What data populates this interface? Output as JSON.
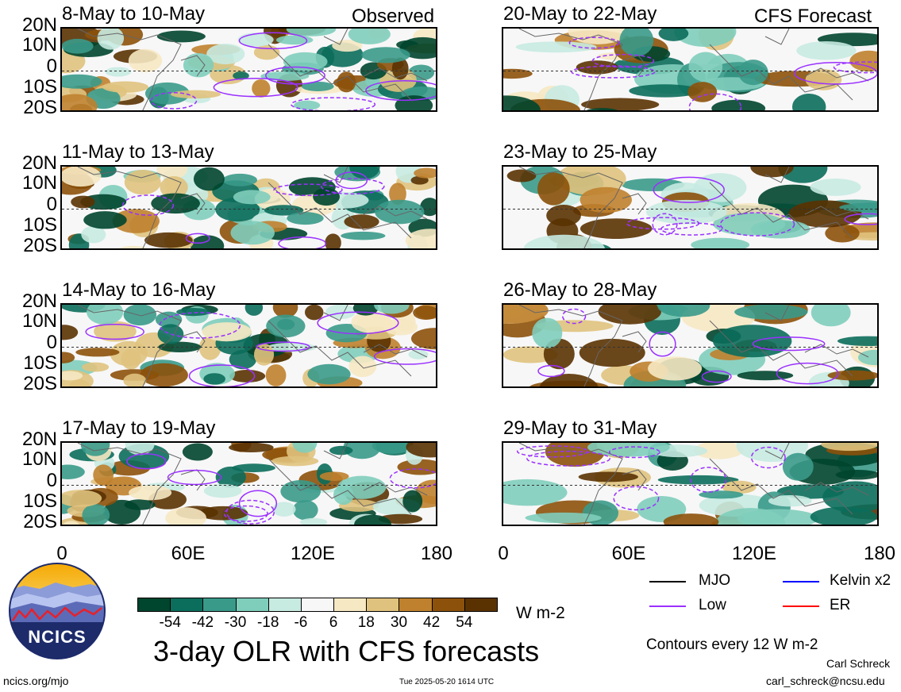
{
  "header": {
    "observed_label": "Observed",
    "forecast_label": "CFS Forecast"
  },
  "lat_labels": [
    "20N",
    "10N",
    "0",
    "10S",
    "20S"
  ],
  "lon_labels": [
    "0",
    "60E",
    "120E",
    "180"
  ],
  "panels": {
    "left": [
      {
        "title": "8-May to 10-May"
      },
      {
        "title": "11-May to 13-May"
      },
      {
        "title": "14-May to 16-May"
      },
      {
        "title": "17-May to 19-May"
      }
    ],
    "right": [
      {
        "title": "20-May to 22-May"
      },
      {
        "title": "23-May to 25-May"
      },
      {
        "title": "26-May to 28-May"
      },
      {
        "title": "29-May to 31-May"
      }
    ]
  },
  "colorbar": {
    "ticks": [
      "-54",
      "-42",
      "-30",
      "-18",
      "-6",
      "6",
      "18",
      "30",
      "42",
      "54"
    ],
    "units": "W m-2",
    "colors": [
      "#00452d",
      "#0b6d5b",
      "#3a9a8a",
      "#7fcdbb",
      "#c7eae1",
      "#f7f7f7",
      "#f6e8c3",
      "#dfc27d",
      "#bf812d",
      "#8c510a",
      "#5a3202"
    ]
  },
  "legend": {
    "items": [
      {
        "label": "MJO",
        "color": "#000000"
      },
      {
        "label": "Kelvin x2",
        "color": "#0000ff"
      },
      {
        "label": "Low",
        "color": "#9b30ff"
      },
      {
        "label": "ER",
        "color": "#ff0000"
      }
    ],
    "contour_note": "Contours every 12 W m-2"
  },
  "main_title": "3-day OLR with CFS forecasts",
  "logo_text": "NCICS",
  "footer": {
    "url": "ncics.org/mjo",
    "timestamp": "Tue 2025-05-20 1614 UTC",
    "author": "Carl Schreck",
    "email": "carl_schreck@ncsu.edu"
  },
  "chart_data": {
    "type": "heatmap",
    "title": "3-day OLR with CFS forecasts",
    "x_axis": {
      "ticks": [
        "0",
        "60E",
        "120E",
        "180"
      ],
      "range": [
        0,
        180
      ]
    },
    "y_axis": {
      "ticks": [
        "20N",
        "10N",
        "0",
        "10S",
        "20S"
      ],
      "range": [
        -20,
        20
      ]
    },
    "color_levels": [
      -54,
      -42,
      -30,
      -18,
      -6,
      6,
      18,
      30,
      42,
      54
    ],
    "units": "W m-2",
    "contour_interval": 12,
    "observed_periods": [
      "8-May to 10-May",
      "11-May to 13-May",
      "14-May to 16-May",
      "17-May to 19-May"
    ],
    "forecast_periods": [
      "20-May to 22-May",
      "23-May to 25-May",
      "26-May to 28-May",
      "29-May to 31-May"
    ],
    "grid": false
  }
}
